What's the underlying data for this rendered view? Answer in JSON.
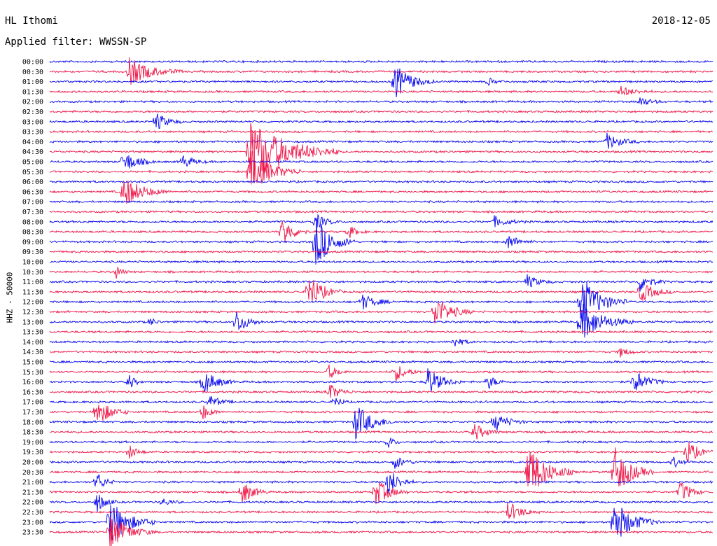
{
  "header": {
    "station": "HL Ithomi",
    "date": "2018-12-05",
    "filter": "Applied filter: WWSSN-SP"
  },
  "chart_data": {
    "type": "line",
    "ylabel": "HHZ - 50000",
    "colors": [
      "#0000ee",
      "#ee1144"
    ],
    "time_labels": [
      "00:00",
      "00:30",
      "01:00",
      "01:30",
      "02:00",
      "02:30",
      "03:00",
      "03:30",
      "04:00",
      "04:30",
      "05:00",
      "05:30",
      "06:00",
      "06:30",
      "07:00",
      "07:30",
      "08:00",
      "08:30",
      "09:00",
      "09:30",
      "10:00",
      "10:30",
      "11:00",
      "11:30",
      "12:00",
      "12:30",
      "13:00",
      "13:30",
      "14:00",
      "14:30",
      "15:00",
      "15:30",
      "16:00",
      "16:30",
      "17:00",
      "17:30",
      "18:00",
      "18:30",
      "19:00",
      "19:30",
      "20:00",
      "20:30",
      "21:00",
      "21:30",
      "22:00",
      "22:30",
      "23:00",
      "23:30"
    ],
    "events": [
      {
        "row": 1,
        "x": 0.12,
        "amp": 20,
        "dur": 0.08
      },
      {
        "row": 2,
        "x": 0.52,
        "amp": 26,
        "dur": 0.06
      },
      {
        "row": 2,
        "x": 0.66,
        "amp": 6,
        "dur": 0.03
      },
      {
        "row": 3,
        "x": 0.86,
        "amp": 8,
        "dur": 0.05
      },
      {
        "row": 4,
        "x": 0.89,
        "amp": 7,
        "dur": 0.04
      },
      {
        "row": 6,
        "x": 0.16,
        "amp": 14,
        "dur": 0.04
      },
      {
        "row": 8,
        "x": 0.84,
        "amp": 12,
        "dur": 0.05
      },
      {
        "row": 9,
        "x": 0.3,
        "amp": 50,
        "dur": 0.14
      },
      {
        "row": 10,
        "x": 0.11,
        "amp": 18,
        "dur": 0.05
      },
      {
        "row": 10,
        "x": 0.2,
        "amp": 10,
        "dur": 0.04
      },
      {
        "row": 11,
        "x": 0.3,
        "amp": 34,
        "dur": 0.08
      },
      {
        "row": 13,
        "x": 0.11,
        "amp": 24,
        "dur": 0.07
      },
      {
        "row": 16,
        "x": 0.4,
        "amp": 12,
        "dur": 0.04
      },
      {
        "row": 16,
        "x": 0.67,
        "amp": 8,
        "dur": 0.05
      },
      {
        "row": 17,
        "x": 0.35,
        "amp": 24,
        "dur": 0.04
      },
      {
        "row": 17,
        "x": 0.45,
        "amp": 10,
        "dur": 0.03
      },
      {
        "row": 18,
        "x": 0.4,
        "amp": 40,
        "dur": 0.06
      },
      {
        "row": 18,
        "x": 0.69,
        "amp": 12,
        "dur": 0.04
      },
      {
        "row": 21,
        "x": 0.1,
        "amp": 10,
        "dur": 0.02
      },
      {
        "row": 22,
        "x": 0.72,
        "amp": 10,
        "dur": 0.04
      },
      {
        "row": 22,
        "x": 0.89,
        "amp": 14,
        "dur": 0.04
      },
      {
        "row": 23,
        "x": 0.39,
        "amp": 28,
        "dur": 0.05
      },
      {
        "row": 23,
        "x": 0.89,
        "amp": 16,
        "dur": 0.05
      },
      {
        "row": 24,
        "x": 0.47,
        "amp": 12,
        "dur": 0.05
      },
      {
        "row": 24,
        "x": 0.8,
        "amp": 40,
        "dur": 0.07
      },
      {
        "row": 25,
        "x": 0.58,
        "amp": 24,
        "dur": 0.06
      },
      {
        "row": 26,
        "x": 0.28,
        "amp": 20,
        "dur": 0.04
      },
      {
        "row": 26,
        "x": 0.8,
        "amp": 30,
        "dur": 0.08
      },
      {
        "row": 26,
        "x": 0.15,
        "amp": 8,
        "dur": 0.02
      },
      {
        "row": 28,
        "x": 0.61,
        "amp": 8,
        "dur": 0.03
      },
      {
        "row": 29,
        "x": 0.86,
        "amp": 8,
        "dur": 0.03
      },
      {
        "row": 31,
        "x": 0.42,
        "amp": 12,
        "dur": 0.03
      },
      {
        "row": 31,
        "x": 0.52,
        "amp": 14,
        "dur": 0.04
      },
      {
        "row": 32,
        "x": 0.12,
        "amp": 12,
        "dur": 0.02
      },
      {
        "row": 32,
        "x": 0.23,
        "amp": 20,
        "dur": 0.05
      },
      {
        "row": 32,
        "x": 0.57,
        "amp": 22,
        "dur": 0.05
      },
      {
        "row": 32,
        "x": 0.66,
        "amp": 12,
        "dur": 0.03
      },
      {
        "row": 32,
        "x": 0.88,
        "amp": 18,
        "dur": 0.05
      },
      {
        "row": 33,
        "x": 0.42,
        "amp": 14,
        "dur": 0.04
      },
      {
        "row": 34,
        "x": 0.24,
        "amp": 10,
        "dur": 0.04
      },
      {
        "row": 34,
        "x": 0.43,
        "amp": 10,
        "dur": 0.02
      },
      {
        "row": 35,
        "x": 0.07,
        "amp": 22,
        "dur": 0.05
      },
      {
        "row": 35,
        "x": 0.23,
        "amp": 12,
        "dur": 0.03
      },
      {
        "row": 36,
        "x": 0.46,
        "amp": 28,
        "dur": 0.06
      },
      {
        "row": 36,
        "x": 0.67,
        "amp": 14,
        "dur": 0.05
      },
      {
        "row": 37,
        "x": 0.64,
        "amp": 14,
        "dur": 0.04
      },
      {
        "row": 38,
        "x": 0.51,
        "amp": 10,
        "dur": 0.02
      },
      {
        "row": 39,
        "x": 0.12,
        "amp": 10,
        "dur": 0.03
      },
      {
        "row": 39,
        "x": 0.96,
        "amp": 20,
        "dur": 0.04
      },
      {
        "row": 40,
        "x": 0.52,
        "amp": 10,
        "dur": 0.04
      },
      {
        "row": 40,
        "x": 0.94,
        "amp": 8,
        "dur": 0.03
      },
      {
        "row": 41,
        "x": 0.72,
        "amp": 44,
        "dur": 0.07
      },
      {
        "row": 41,
        "x": 0.85,
        "amp": 40,
        "dur": 0.06
      },
      {
        "row": 42,
        "x": 0.07,
        "amp": 16,
        "dur": 0.03
      },
      {
        "row": 42,
        "x": 0.51,
        "amp": 22,
        "dur": 0.04
      },
      {
        "row": 43,
        "x": 0.29,
        "amp": 18,
        "dur": 0.04
      },
      {
        "row": 43,
        "x": 0.49,
        "amp": 22,
        "dur": 0.05
      },
      {
        "row": 43,
        "x": 0.95,
        "amp": 18,
        "dur": 0.04
      },
      {
        "row": 44,
        "x": 0.07,
        "amp": 18,
        "dur": 0.03
      },
      {
        "row": 44,
        "x": 0.17,
        "amp": 6,
        "dur": 0.03
      },
      {
        "row": 45,
        "x": 0.69,
        "amp": 16,
        "dur": 0.05
      },
      {
        "row": 46,
        "x": 0.09,
        "amp": 34,
        "dur": 0.07
      },
      {
        "row": 46,
        "x": 0.85,
        "amp": 34,
        "dur": 0.07
      },
      {
        "row": 47,
        "x": 0.09,
        "amp": 26,
        "dur": 0.07
      }
    ]
  }
}
